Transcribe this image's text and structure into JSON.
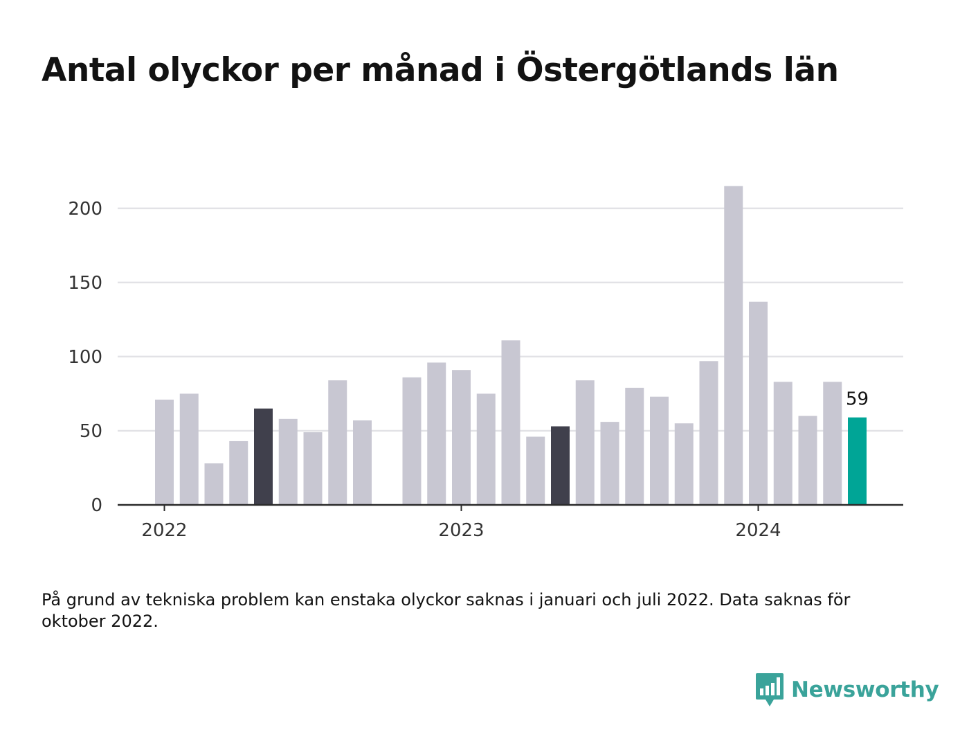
{
  "title": "Antal olyckor per månad i Östergötlands län",
  "note": "På grund av tekniska problem kan enstaka olyckor saknas i januari och juli 2022. Data saknas för oktober 2022.",
  "brand": {
    "name": "Newsworthy",
    "icon": "newsworthy-logo-icon",
    "color": "#3aa39a"
  },
  "colors": {
    "default": "#c8c7d2",
    "highlight": "#40404c",
    "latest": "#00a596",
    "grid": "#e2e2e6",
    "axis": "#2b2b2b"
  },
  "chart_data": {
    "type": "bar",
    "categories": [
      "2022-01",
      "2022-02",
      "2022-03",
      "2022-04",
      "2022-05",
      "2022-06",
      "2022-07",
      "2022-08",
      "2022-09",
      "2022-10",
      "2022-11",
      "2022-12",
      "2023-01",
      "2023-02",
      "2023-03",
      "2023-04",
      "2023-05",
      "2023-06",
      "2023-07",
      "2023-08",
      "2023-09",
      "2023-10",
      "2023-11",
      "2023-12",
      "2024-01",
      "2024-02",
      "2024-03",
      "2024-04",
      "2024-05"
    ],
    "values": [
      71,
      75,
      28,
      43,
      65,
      58,
      49,
      84,
      57,
      null,
      86,
      96,
      91,
      75,
      111,
      46,
      53,
      84,
      56,
      79,
      73,
      55,
      97,
      215,
      137,
      83,
      60,
      83,
      59
    ],
    "highlighted": [
      "2022-05",
      "2023-05"
    ],
    "latest": "2024-05",
    "value_labels": {
      "2024-05": "59"
    },
    "yticks": [
      0,
      50,
      100,
      150,
      200
    ],
    "ylim": [
      0,
      220
    ],
    "xticks": [
      {
        "label": "2022",
        "at": "2022-01"
      },
      {
        "label": "2023",
        "at": "2023-01"
      },
      {
        "label": "2024",
        "at": "2024-01"
      }
    ],
    "grid": true
  }
}
